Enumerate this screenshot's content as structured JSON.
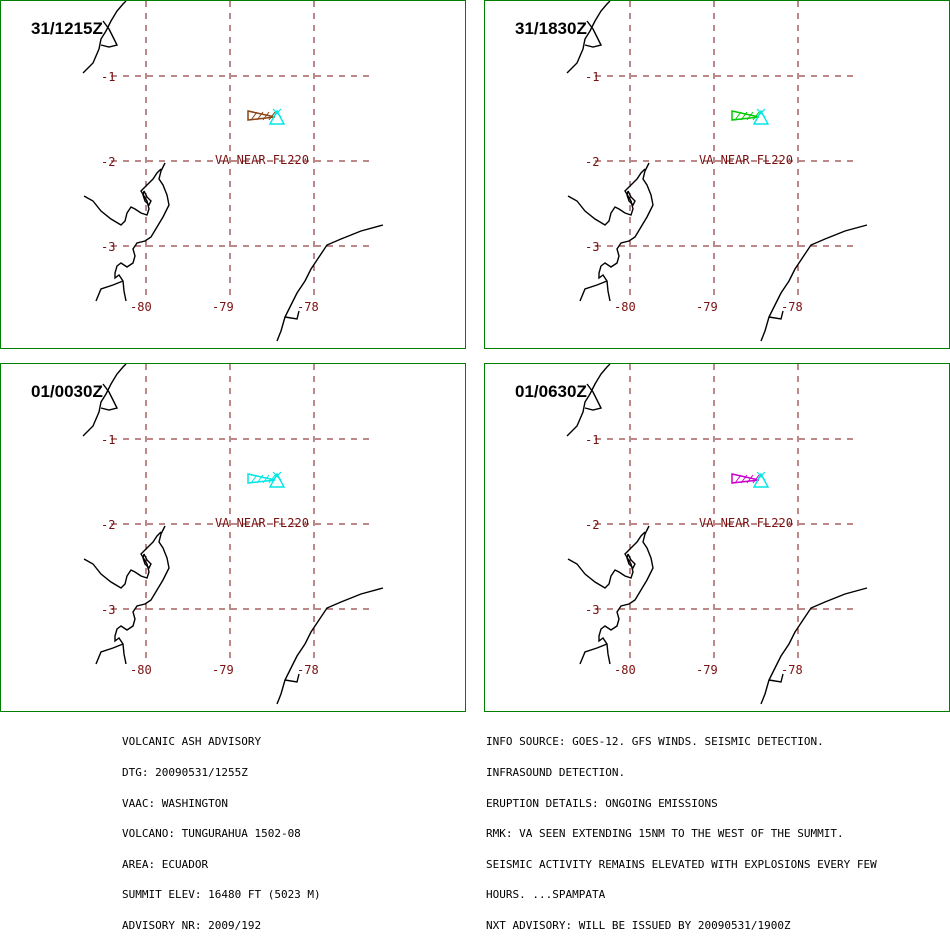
{
  "panels": [
    {
      "time": "31/1215Z",
      "plume_color": "#8b4513",
      "fill_color": "#8b4513"
    },
    {
      "time": "31/1830Z",
      "plume_color": "#00cc00",
      "fill_color": "#00cc00"
    },
    {
      "time": "01/0030Z",
      "plume_color": "#00e5e5",
      "fill_color": "#00e5e5"
    },
    {
      "time": "01/0630Z",
      "plume_color": "#cc00cc",
      "fill_color": "#cc00cc"
    }
  ],
  "grid": {
    "lat_labels": [
      "-1",
      "-2",
      "-3"
    ],
    "lon_labels": [
      "-80",
      "-79",
      "-78"
    ],
    "color": "#7a1010"
  },
  "va_label": "VA NEAR FL220",
  "volcano_marker_color": "#00e5e5",
  "advisory_left": [
    "VOLCANIC ASH ADVISORY",
    "DTG: 20090531/1255Z",
    "VAAC: WASHINGTON",
    "VOLCANO: TUNGURAHUA 1502-08",
    "AREA: ECUADOR",
    "SUMMIT ELEV: 16480 FT (5023 M)",
    "ADVISORY NR: 2009/192"
  ],
  "advisory_right": [
    "INFO SOURCE: GOES-12. GFS WINDS. SEISMIC DETECTION.",
    "INFRASOUND DETECTION.",
    "ERUPTION DETAILS: ONGOING EMISSIONS",
    "RMK: VA SEEN EXTENDING 15NM TO THE WEST OF THE SUMMIT.",
    "SEISMIC ACTIVITY REMAINS ELEVATED WITH EXPLOSIONS EVERY FEW",
    "HOURS. ...SPAMPATA",
    "NXT ADVISORY: WILL BE ISSUED BY 20090531/1900Z"
  ]
}
